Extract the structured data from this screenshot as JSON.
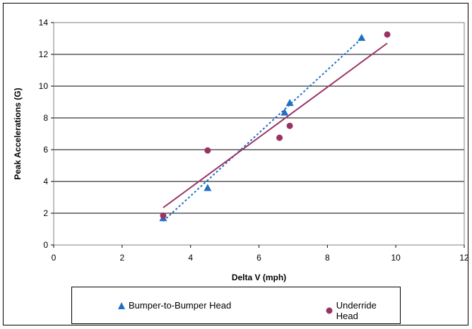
{
  "chart_data": {
    "type": "scatter",
    "title": "",
    "xlabel": "Delta V (mph)",
    "ylabel": "Peak Accelerations (G)",
    "xlim": [
      0,
      12
    ],
    "ylim": [
      0,
      14
    ],
    "xticks": [
      0,
      2,
      4,
      6,
      8,
      10,
      12
    ],
    "yticks": [
      0,
      2,
      4,
      6,
      8,
      10,
      12,
      14
    ],
    "grid": "horizontal",
    "legend_position": "bottom",
    "series": [
      {
        "name": "Bumper-to-Bumper Head",
        "marker": "triangle",
        "color": "#1F6FC5",
        "points": [
          [
            3.2,
            1.7
          ],
          [
            4.5,
            3.6
          ],
          [
            6.75,
            8.35
          ],
          [
            6.9,
            8.95
          ],
          [
            9.0,
            13.05
          ]
        ],
        "trendline": {
          "style": "dashed",
          "color": "#1F6FC5",
          "from": [
            3.2,
            1.5
          ],
          "to": [
            9.0,
            13.0
          ]
        }
      },
      {
        "name": "Underride Head",
        "marker": "circle",
        "color": "#993366",
        "points": [
          [
            3.2,
            1.85
          ],
          [
            4.5,
            5.95
          ],
          [
            6.6,
            6.75
          ],
          [
            6.9,
            7.5
          ],
          [
            9.75,
            13.25
          ]
        ],
        "trendline": {
          "style": "solid",
          "color": "#993366",
          "from": [
            3.2,
            2.35
          ],
          "to": [
            9.75,
            12.7
          ]
        }
      }
    ]
  }
}
